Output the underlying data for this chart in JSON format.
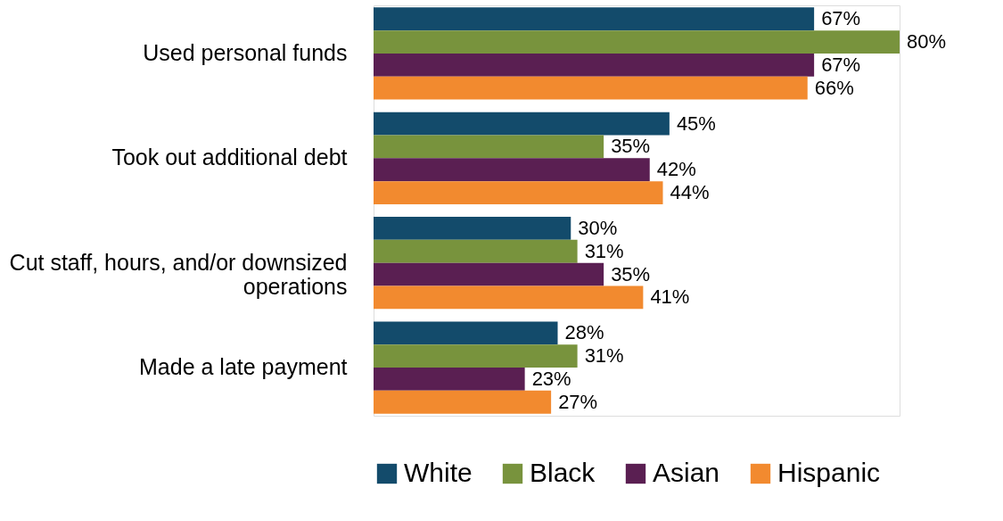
{
  "chart_data": {
    "type": "bar",
    "orientation": "horizontal",
    "legend": "bottom",
    "categories": [
      "Used personal funds",
      "Took out additional debt",
      "Cut staff, hours, and/or downsized operations",
      "Made a late payment"
    ],
    "series": [
      {
        "name": "White",
        "color": "#134b6b",
        "values": [
          67,
          45,
          30,
          28
        ],
        "value_labels": [
          "67%",
          "45%",
          "30%",
          "28%"
        ]
      },
      {
        "name": "Black",
        "color": "#78933d",
        "values": [
          80,
          35,
          31,
          31
        ],
        "value_labels": [
          "80%",
          "35%",
          "31%",
          "31%"
        ]
      },
      {
        "name": "Asian",
        "color": "#5a1f52",
        "values": [
          67,
          42,
          35,
          23
        ],
        "value_labels": [
          "67%",
          "42%",
          "35%",
          "23%"
        ]
      },
      {
        "name": "Hispanic",
        "color": "#f28a2f",
        "values": [
          66,
          44,
          41,
          27
        ],
        "value_labels": [
          "66%",
          "44%",
          "41%",
          "27%"
        ]
      }
    ]
  }
}
